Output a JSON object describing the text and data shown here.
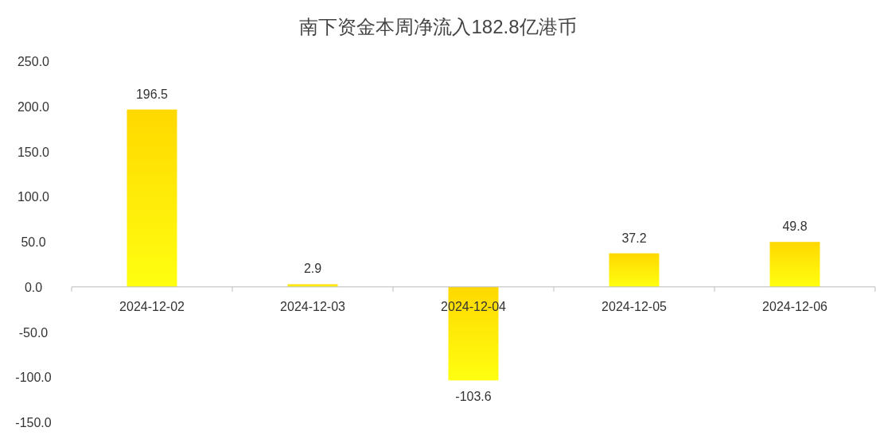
{
  "chart_data": {
    "type": "bar",
    "title": "南下资金本周净流入182.8亿港币",
    "categories": [
      "2024-12-02",
      "2024-12-03",
      "2024-12-04",
      "2024-12-05",
      "2024-12-06"
    ],
    "values": [
      196.5,
      2.9,
      -103.6,
      37.2,
      49.8
    ],
    "color": "#ffd800",
    "ylim": [
      -150,
      250
    ],
    "yticks": [
      {
        "value": -150,
        "label": "-150.0"
      },
      {
        "value": -100,
        "label": "-100.0"
      },
      {
        "value": -50,
        "label": "-50.0"
      },
      {
        "value": 0,
        "label": "0.0"
      },
      {
        "value": 50,
        "label": "50.0"
      },
      {
        "value": 100,
        "label": "100.0"
      },
      {
        "value": 150,
        "label": "150.0"
      },
      {
        "value": 200,
        "label": "200.0"
      },
      {
        "value": 250,
        "label": "250.0"
      }
    ],
    "data_labels": true
  }
}
